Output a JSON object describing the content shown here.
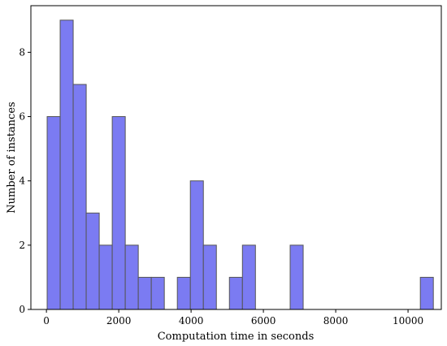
{
  "chart_data": {
    "type": "bar",
    "title": "",
    "xlabel": "Computation time in seconds",
    "ylabel": "Number of instances",
    "xlim": [
      -430,
      10920
    ],
    "ylim": [
      0,
      9.45
    ],
    "grid": false,
    "bin_width": 360,
    "bar_color": "#7b7bf2",
    "edge_color": "#555555",
    "bins": [
      {
        "x": 200,
        "value": 6
      },
      {
        "x": 560,
        "value": 9
      },
      {
        "x": 920,
        "value": 7
      },
      {
        "x": 1280,
        "value": 3
      },
      {
        "x": 1640,
        "value": 2
      },
      {
        "x": 2000,
        "value": 6
      },
      {
        "x": 2360,
        "value": 2
      },
      {
        "x": 2720,
        "value": 1
      },
      {
        "x": 3080,
        "value": 1
      },
      {
        "x": 3440,
        "value": 0
      },
      {
        "x": 3800,
        "value": 1
      },
      {
        "x": 4160,
        "value": 4
      },
      {
        "x": 4520,
        "value": 2
      },
      {
        "x": 4880,
        "value": 0
      },
      {
        "x": 5240,
        "value": 1
      },
      {
        "x": 5600,
        "value": 2
      },
      {
        "x": 6920,
        "value": 2
      },
      {
        "x": 10520,
        "value": 1
      }
    ],
    "x_ticks": [
      0,
      2000,
      4000,
      6000,
      8000,
      10000
    ],
    "y_ticks": [
      0,
      2,
      4,
      6,
      8
    ]
  }
}
